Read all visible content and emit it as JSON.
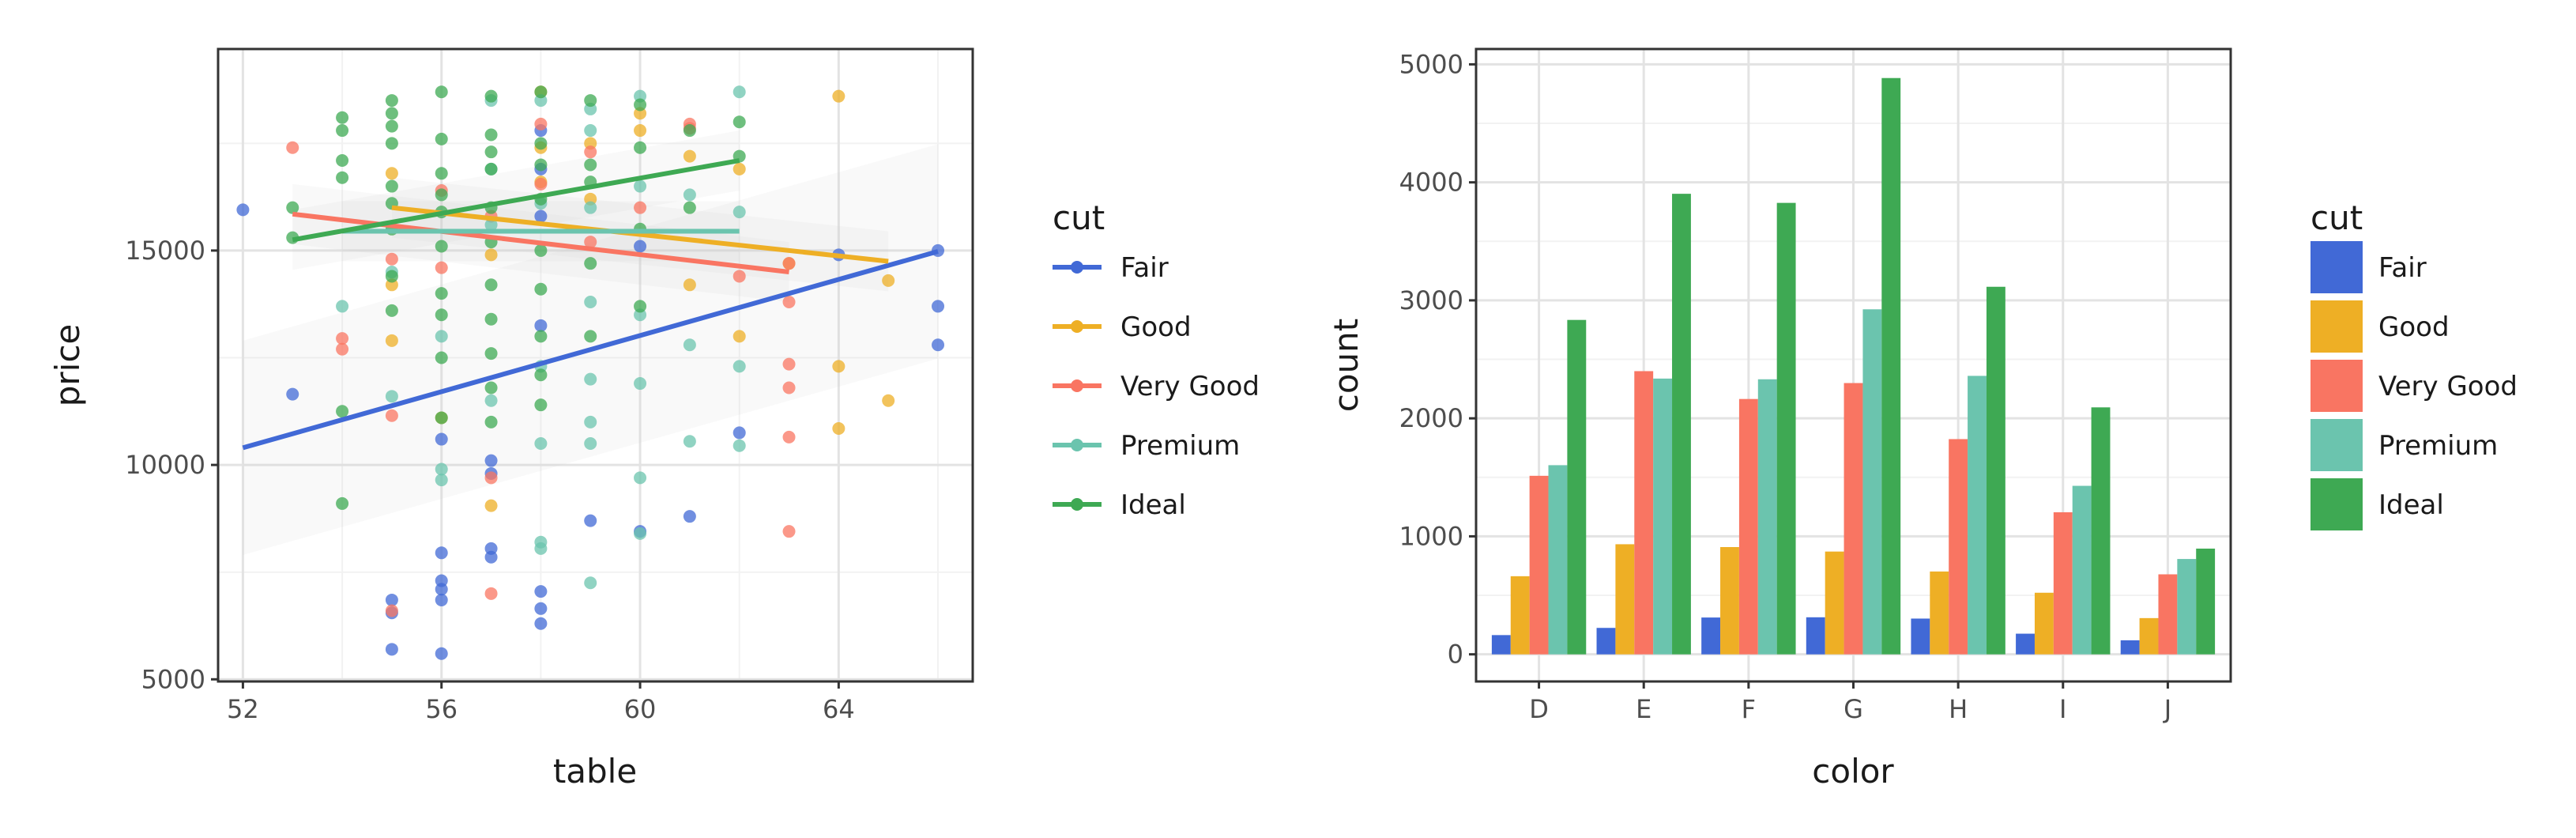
{
  "colors": {
    "Fair": "#4169d6",
    "Good": "#eeaf25",
    "Very Good": "#f97562",
    "Premium": "#6bc4ae",
    "Ideal": "#3ea953"
  },
  "chart_data": [
    {
      "type": "scatter",
      "xlabel": "table",
      "ylabel": "price",
      "xlim": [
        51.5,
        66.7
      ],
      "ylim": [
        4950,
        19700
      ],
      "xticks": [
        "52",
        "56",
        "60",
        "64"
      ],
      "yticks": [
        "5000",
        "10000",
        "15000"
      ],
      "grid": true,
      "legend": {
        "title": "cut",
        "position": "right",
        "entries": [
          "Fair",
          "Good",
          "Very Good",
          "Premium",
          "Ideal"
        ]
      },
      "series": [
        {
          "name": "Fair",
          "points": [
            [
              52,
              15950
            ],
            [
              53,
              11650
            ],
            [
              55,
              6850
            ],
            [
              55,
              6550
            ],
            [
              55,
              5700
            ],
            [
              56,
              7950
            ],
            [
              56,
              7300
            ],
            [
              56,
              7100
            ],
            [
              56,
              6850
            ],
            [
              56,
              5600
            ],
            [
              56,
              10600
            ],
            [
              57,
              9800
            ],
            [
              57,
              10100
            ],
            [
              57,
              8050
            ],
            [
              57,
              7850
            ],
            [
              58,
              7050
            ],
            [
              58,
              6650
            ],
            [
              58,
              6300
            ],
            [
              58,
              13250
            ],
            [
              58,
              15800
            ],
            [
              58,
              16900
            ],
            [
              58,
              17800
            ],
            [
              59,
              8700
            ],
            [
              60,
              8450
            ],
            [
              60,
              15100
            ],
            [
              61,
              8800
            ],
            [
              62,
              10750
            ],
            [
              64,
              14900
            ],
            [
              66,
              15000
            ],
            [
              66,
              13700
            ],
            [
              66,
              12800
            ]
          ],
          "trend": {
            "x": [
              52,
              66
            ],
            "y": [
              10400,
              14980
            ]
          }
        },
        {
          "name": "Good",
          "points": [
            [
              55,
              12900
            ],
            [
              55,
              14200
            ],
            [
              55,
              16800
            ],
            [
              56,
              11100
            ],
            [
              57,
              9050
            ],
            [
              57,
              14900
            ],
            [
              58,
              16600
            ],
            [
              58,
              18700
            ],
            [
              59,
              16200
            ],
            [
              59,
              17500
            ],
            [
              60,
              18200
            ],
            [
              61,
              14200
            ],
            [
              61,
              17200
            ],
            [
              62,
              13000
            ],
            [
              63,
              14700
            ],
            [
              64,
              12300
            ],
            [
              64,
              10850
            ],
            [
              64,
              18600
            ],
            [
              65,
              11500
            ],
            [
              65,
              14300
            ],
            [
              62,
              16900
            ],
            [
              60,
              17800
            ],
            [
              58,
              17400
            ]
          ],
          "trend": {
            "x": [
              55,
              65
            ],
            "y": [
              16000,
              14750
            ]
          }
        },
        {
          "name": "Very Good",
          "points": [
            [
              53,
              17400
            ],
            [
              54,
              12950
            ],
            [
              54,
              12700
            ],
            [
              55,
              6600
            ],
            [
              55,
              11150
            ],
            [
              55,
              14800
            ],
            [
              56,
              14600
            ],
            [
              56,
              16400
            ],
            [
              57,
              7000
            ],
            [
              57,
              9700
            ],
            [
              58,
              16550
            ],
            [
              58,
              17950
            ],
            [
              59,
              17300
            ],
            [
              60,
              16000
            ],
            [
              61,
              17950
            ],
            [
              61,
              17850
            ],
            [
              62,
              14400
            ],
            [
              63,
              13800
            ],
            [
              63,
              12350
            ],
            [
              63,
              11800
            ],
            [
              63,
              10650
            ],
            [
              63,
              8450
            ],
            [
              63,
              14700
            ],
            [
              59,
              15200
            ],
            [
              57,
              15800
            ]
          ],
          "trend": {
            "x": [
              53,
              63
            ],
            "y": [
              15850,
              14500
            ]
          }
        },
        {
          "name": "Premium",
          "points": [
            [
              54,
              13700
            ],
            [
              55,
              11600
            ],
            [
              55,
              14500
            ],
            [
              56,
              9900
            ],
            [
              56,
              9650
            ],
            [
              56,
              13000
            ],
            [
              57,
              11500
            ],
            [
              57,
              16900
            ],
            [
              57,
              18500
            ],
            [
              58,
              8200
            ],
            [
              58,
              8050
            ],
            [
              58,
              10500
            ],
            [
              58,
              12300
            ],
            [
              58,
              16100
            ],
            [
              59,
              7250
            ],
            [
              59,
              10500
            ],
            [
              59,
              11000
            ],
            [
              59,
              12000
            ],
            [
              59,
              13800
            ],
            [
              59,
              16000
            ],
            [
              59,
              17800
            ],
            [
              60,
              9700
            ],
            [
              60,
              8400
            ],
            [
              60,
              11900
            ],
            [
              60,
              13500
            ],
            [
              60,
              16500
            ],
            [
              60,
              18600
            ],
            [
              61,
              10550
            ],
            [
              61,
              12800
            ],
            [
              61,
              16300
            ],
            [
              62,
              10450
            ],
            [
              62,
              12300
            ],
            [
              62,
              15900
            ],
            [
              62,
              18700
            ],
            [
              59,
              18300
            ],
            [
              58,
              18500
            ],
            [
              57,
              15600
            ]
          ],
          "trend": {
            "x": [
              54,
              62
            ],
            "y": [
              15450,
              15450
            ]
          }
        },
        {
          "name": "Ideal",
          "points": [
            [
              53,
              15300
            ],
            [
              53,
              16000
            ],
            [
              54,
              18100
            ],
            [
              54,
              17100
            ],
            [
              54,
              16700
            ],
            [
              54,
              11250
            ],
            [
              54,
              9100
            ],
            [
              55,
              18500
            ],
            [
              55,
              17500
            ],
            [
              55,
              16500
            ],
            [
              55,
              15500
            ],
            [
              55,
              14400
            ],
            [
              55,
              13600
            ],
            [
              55,
              18200
            ],
            [
              55,
              17900
            ],
            [
              56,
              18700
            ],
            [
              56,
              17600
            ],
            [
              56,
              16800
            ],
            [
              56,
              15900
            ],
            [
              56,
              15100
            ],
            [
              56,
              14000
            ],
            [
              56,
              13500
            ],
            [
              56,
              12500
            ],
            [
              56,
              11100
            ],
            [
              57,
              18600
            ],
            [
              57,
              17700
            ],
            [
              57,
              16900
            ],
            [
              57,
              16000
            ],
            [
              57,
              15200
            ],
            [
              57,
              14200
            ],
            [
              57,
              13400
            ],
            [
              57,
              12600
            ],
            [
              57,
              11800
            ],
            [
              57,
              11000
            ],
            [
              58,
              18700
            ],
            [
              58,
              17500
            ],
            [
              58,
              16200
            ],
            [
              58,
              15000
            ],
            [
              58,
              14100
            ],
            [
              58,
              13000
            ],
            [
              58,
              12100
            ],
            [
              58,
              11400
            ],
            [
              59,
              18500
            ],
            [
              59,
              17000
            ],
            [
              59,
              14700
            ],
            [
              59,
              13000
            ],
            [
              60,
              18400
            ],
            [
              60,
              17400
            ],
            [
              60,
              15500
            ],
            [
              60,
              13700
            ],
            [
              61,
              17800
            ],
            [
              61,
              16000
            ],
            [
              62,
              18000
            ],
            [
              62,
              17200
            ],
            [
              54,
              17800
            ],
            [
              55,
              16100
            ],
            [
              56,
              16300
            ],
            [
              57,
              17300
            ],
            [
              58,
              17000
            ],
            [
              59,
              16600
            ]
          ],
          "trend": {
            "x": [
              53,
              62
            ],
            "y": [
              15250,
              17100
            ]
          }
        }
      ]
    },
    {
      "type": "bar",
      "xlabel": "color",
      "ylabel": "count",
      "ylim": [
        -230,
        5130
      ],
      "yticks": [
        "0",
        "1000",
        "2000",
        "3000",
        "4000",
        "5000"
      ],
      "categories": [
        "D",
        "E",
        "F",
        "G",
        "H",
        "I",
        "J"
      ],
      "grid": true,
      "legend": {
        "title": "cut",
        "position": "right",
        "entries": [
          "Fair",
          "Good",
          "Very Good",
          "Premium",
          "Ideal"
        ]
      },
      "series": [
        {
          "name": "Fair",
          "values": [
            163,
            224,
            312,
            314,
            303,
            175,
            119
          ]
        },
        {
          "name": "Good",
          "values": [
            662,
            933,
            909,
            871,
            702,
            522,
            307
          ]
        },
        {
          "name": "Very Good",
          "values": [
            1513,
            2400,
            2164,
            2299,
            1824,
            1204,
            678
          ]
        },
        {
          "name": "Premium",
          "values": [
            1603,
            2337,
            2331,
            2924,
            2360,
            1428,
            808
          ]
        },
        {
          "name": "Ideal",
          "values": [
            2834,
            3903,
            3826,
            4884,
            3115,
            2093,
            896
          ]
        }
      ]
    }
  ]
}
